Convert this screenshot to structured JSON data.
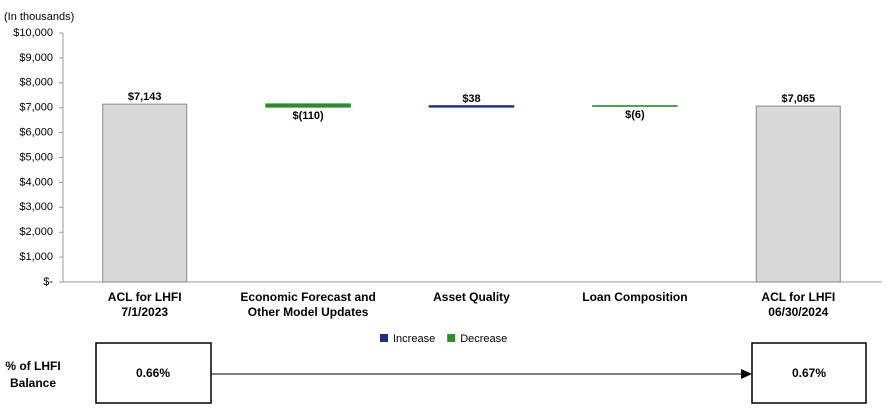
{
  "chart_data": {
    "type": "waterfall",
    "axis_label": "(In thousands)",
    "categories": [
      [
        "ACL for LHFI",
        "7/1/2023"
      ],
      [
        "Economic Forecast and",
        "Other Model Updates"
      ],
      [
        "Asset Quality"
      ],
      [
        "Loan Composition"
      ],
      [
        "ACL for LHFI",
        "06/30/2024"
      ]
    ],
    "values": [
      7143,
      -110,
      38,
      -6,
      7065
    ],
    "value_labels": [
      "$7,143",
      "$(110)",
      "$38",
      "$(6)",
      "$7,065"
    ],
    "totals": [
      true,
      false,
      false,
      false,
      true
    ],
    "total_color": "#d9d9d9",
    "increase_color": "#1f2c8f",
    "decrease_color": "#2e8b2e",
    "legend": [
      {
        "name": "Increase",
        "color": "#1f2c8f"
      },
      {
        "name": "Decrease",
        "color": "#2e8b2e"
      }
    ],
    "ylim": [
      0,
      10000
    ],
    "yticks": [
      {
        "value": 0,
        "label": "$-"
      },
      {
        "value": 1000,
        "label": "$1,000"
      },
      {
        "value": 2000,
        "label": "$2,000"
      },
      {
        "value": 3000,
        "label": "$3,000"
      },
      {
        "value": 4000,
        "label": "$4,000"
      },
      {
        "value": 5000,
        "label": "$5,000"
      },
      {
        "value": 6000,
        "label": "$6,000"
      },
      {
        "value": 7000,
        "label": "$7,000"
      },
      {
        "value": 8000,
        "label": "$8,000"
      },
      {
        "value": 9000,
        "label": "$9,000"
      },
      {
        "value": 10000,
        "label": "$10,000"
      }
    ]
  },
  "ratio": {
    "label": [
      "% of LHFI",
      "Balance"
    ],
    "start": "0.66%",
    "end": "0.67%"
  }
}
